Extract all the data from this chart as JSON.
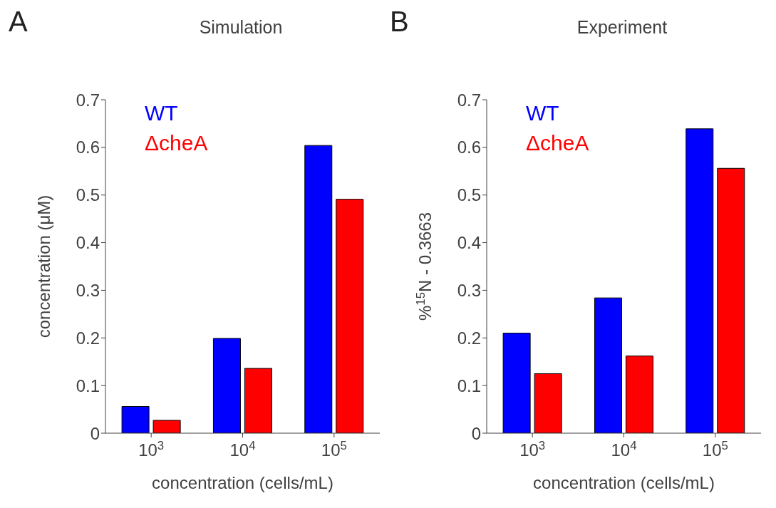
{
  "chart_data": [
    {
      "type": "bar",
      "title": "Simulation",
      "xlabel": "concentration (cells/mL)",
      "ylabel": "concentration (μM)",
      "annotations": [
        "A"
      ],
      "categories": [
        "10$^{3}$",
        "10$^{4}$",
        "10$^{5}$"
      ],
      "series": [
        {
          "name": "WT",
          "color": "#0000ff",
          "values": [
            0.056,
            0.199,
            0.604
          ]
        },
        {
          "name": "ΔcheA",
          "color": "#ff0000",
          "values": [
            0.027,
            0.136,
            0.491
          ]
        }
      ],
      "ylim": [
        0,
        0.7
      ],
      "yticks": [
        0,
        0.1,
        0.2,
        0.3,
        0.4,
        0.5,
        0.6,
        0.7
      ],
      "grid": false,
      "legend": "top left"
    },
    {
      "type": "bar",
      "title": "Experiment",
      "xlabel": "concentration (cells/mL)",
      "ylabel": "%$^{15}$N - 0.3663",
      "annotations": [
        "B"
      ],
      "categories": [
        "10$^{3}$",
        "10$^{4}$",
        "10$^{5}$"
      ],
      "series": [
        {
          "name": "WT",
          "color": "#0000ff",
          "values": [
            0.21,
            0.284,
            0.639
          ]
        },
        {
          "name": "ΔcheA",
          "color": "#ff0000",
          "values": [
            0.125,
            0.162,
            0.556
          ]
        }
      ],
      "ylim": [
        0,
        0.7
      ],
      "yticks": [
        0,
        0.1,
        0.2,
        0.3,
        0.4,
        0.5,
        0.6,
        0.7
      ],
      "grid": false,
      "legend": "top left"
    }
  ]
}
